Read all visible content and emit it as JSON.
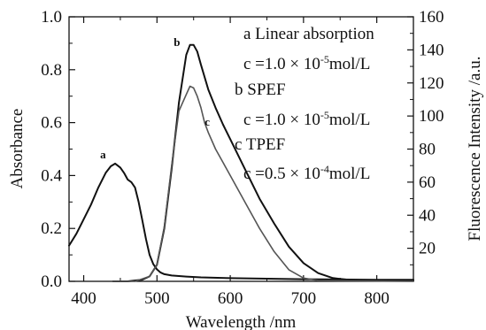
{
  "chart_data": {
    "type": "line",
    "xlabel": "Wavelength /nm",
    "ylabel_left": "Absorbance",
    "ylabel_right": "Fluorescence Intensity /a.u.",
    "xlim": [
      380,
      850
    ],
    "ylim_left": [
      0.0,
      1.0
    ],
    "ylim_right": [
      0,
      160
    ],
    "x_ticks": [
      400,
      500,
      600,
      700,
      800
    ],
    "y_left_ticks": [
      0.0,
      0.2,
      0.4,
      0.6,
      0.8,
      1.0
    ],
    "y_right_ticks": [
      20,
      40,
      60,
      80,
      100,
      120,
      140,
      160
    ],
    "grid": false,
    "series": [
      {
        "letter": "a",
        "axis": "left",
        "x": [
          380,
          390,
          400,
          410,
          420,
          430,
          437,
          443,
          450,
          455,
          460,
          465,
          470,
          475,
          480,
          485,
          490,
          495,
          500,
          505,
          510,
          520,
          540,
          560,
          600,
          650,
          700,
          800,
          850
        ],
        "y": [
          0.135,
          0.18,
          0.235,
          0.29,
          0.355,
          0.41,
          0.435,
          0.445,
          0.43,
          0.41,
          0.385,
          0.375,
          0.355,
          0.3,
          0.23,
          0.16,
          0.1,
          0.065,
          0.045,
          0.033,
          0.027,
          0.022,
          0.018,
          0.015,
          0.012,
          0.01,
          0.008,
          0.006,
          0.006
        ]
      },
      {
        "letter": "b",
        "axis": "right",
        "x": [
          440,
          460,
          480,
          490,
          500,
          510,
          520,
          530,
          540,
          545,
          550,
          555,
          560,
          570,
          580,
          590,
          600,
          620,
          640,
          660,
          680,
          700,
          720,
          740,
          760,
          800,
          850
        ],
        "y": [
          0,
          0,
          1,
          3,
          10,
          32,
          68,
          108,
          137,
          143,
          143,
          139,
          131,
          116,
          105,
          95,
          86,
          68,
          50,
          35,
          21,
          11,
          5,
          2,
          1,
          0.5,
          0.3
        ]
      },
      {
        "letter": "c",
        "axis": "right",
        "x": [
          440,
          470,
          490,
          500,
          510,
          520,
          530,
          540,
          545,
          550,
          555,
          560,
          565,
          570,
          580,
          590,
          600,
          620,
          640,
          660,
          680,
          700,
          720,
          850
        ],
        "y": [
          0,
          0,
          3,
          10,
          33,
          70,
          103,
          113,
          118,
          117,
          112,
          105,
          96,
          90,
          80,
          72,
          64,
          48,
          32,
          18,
          7,
          2,
          0.5,
          0
        ]
      }
    ],
    "legend": {
      "lines": [
        "a Linear absorption",
        "b SPEF",
        "c TPEF"
      ],
      "concentrations": [
        {
          "coef": "c =1.0 ×  10",
          "exp": "-5",
          "unit": "mol/L"
        },
        {
          "coef": "c =1.0 ×  10",
          "exp": "-5",
          "unit": "mol/L"
        },
        {
          "coef": "c =0.5 ×  10",
          "exp": "-4",
          "unit": "mol/L"
        }
      ]
    }
  }
}
